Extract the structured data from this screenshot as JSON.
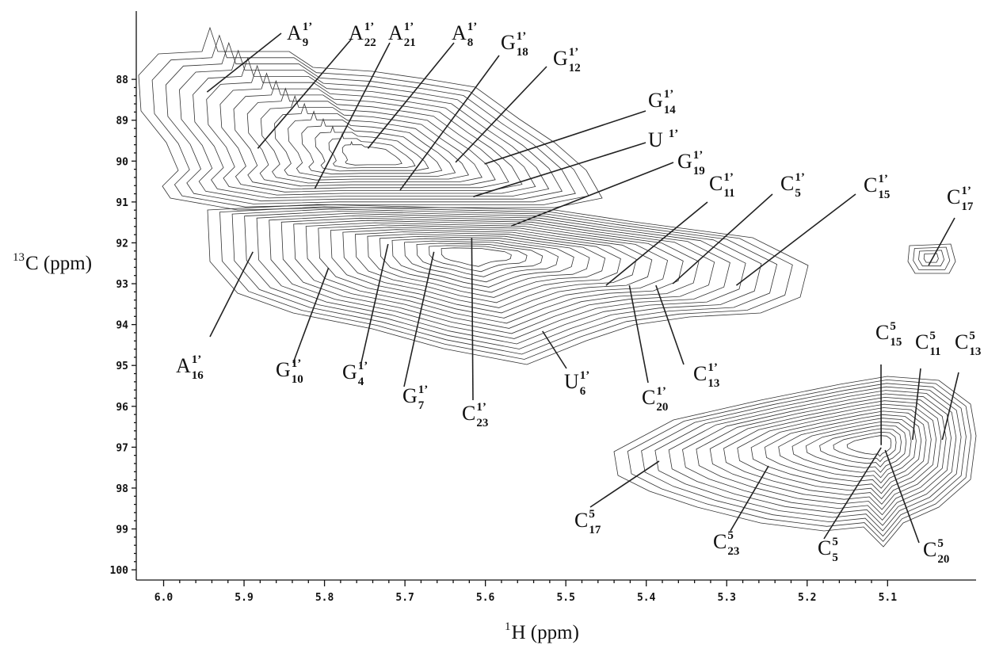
{
  "chart_data": {
    "type": "contour",
    "x_label": {
      "sup": "1",
      "text": "H (ppm)"
    },
    "y_label": {
      "sup": "13",
      "text": "C (ppm)"
    },
    "xlim": [
      6.034,
      4.99
    ],
    "ylim": [
      86.33,
      100.25
    ],
    "xticks": [
      {
        "value": 6.0,
        "label": "6.0"
      },
      5.9,
      5.8,
      5.7,
      5.6,
      5.5,
      5.4,
      5.3,
      5.2,
      5.1
    ],
    "yticks": [
      88,
      89,
      90,
      91,
      92,
      93,
      94,
      95,
      96,
      97,
      98,
      99,
      100
    ],
    "color": "#222222",
    "peaks": [
      {
        "label": {
          "base": "A",
          "sup": "1’",
          "sub": "9"
        },
        "x": 5.946,
        "y": 88.31
      },
      {
        "label": {
          "base": "A",
          "sup": "1’",
          "sub": "22"
        },
        "x": 5.883,
        "y": 89.69
      },
      {
        "label": {
          "base": "A",
          "sup": "1’",
          "sub": "21"
        },
        "x": 5.812,
        "y": 90.67
      },
      {
        "label": {
          "base": "A",
          "sup": "1’",
          "sub": "8"
        },
        "x": 5.746,
        "y": 89.69
      },
      {
        "label": {
          "base": "G",
          "sup": "1’",
          "sub": "18"
        },
        "x": 5.706,
        "y": 90.71
      },
      {
        "label": {
          "base": "G",
          "sup": "1’",
          "sub": "12"
        },
        "x": 5.637,
        "y": 90.03
      },
      {
        "label": {
          "base": "G",
          "sup": "1’",
          "sub": "14"
        },
        "x": 5.601,
        "y": 90.07
      },
      {
        "label": {
          "base": "U",
          "sup": "1’"
        },
        "x": 5.615,
        "y": 90.87
      },
      {
        "label": {
          "base": "G",
          "sup": "1’",
          "sub": "19"
        },
        "x": 5.568,
        "y": 91.59
      },
      {
        "label": {
          "base": "C",
          "sup": "1’",
          "sub": "11"
        },
        "x": 5.45,
        "y": 93.04
      },
      {
        "label": {
          "base": "C",
          "sup": "1’",
          "sub": "5"
        },
        "x": 5.367,
        "y": 93.0
      },
      {
        "label": {
          "base": "C",
          "sup": "1’",
          "sub": "15"
        },
        "x": 5.288,
        "y": 93.04
      },
      {
        "label": {
          "base": "C",
          "sup": "1’",
          "sub": "17"
        },
        "x": 5.049,
        "y": 92.55
      },
      {
        "label": {
          "base": "A",
          "sup": "1’",
          "sub": "16"
        },
        "x": 5.889,
        "y": 92.22
      },
      {
        "label": {
          "base": "G",
          "sup": "1’",
          "sub": "10"
        },
        "x": 5.795,
        "y": 92.61
      },
      {
        "label": {
          "base": "G",
          "sup": "1’",
          "sub": "4"
        },
        "x": 5.721,
        "y": 92.03
      },
      {
        "label": {
          "base": "G",
          "sup": "1’",
          "sub": "7"
        },
        "x": 5.664,
        "y": 92.22
      },
      {
        "label": {
          "base": "C",
          "sup": "1’",
          "sub": "23"
        },
        "x": 5.617,
        "y": 91.88
      },
      {
        "label": {
          "base": "U",
          "sup": "1’",
          "sub": "6"
        },
        "x": 5.529,
        "y": 94.16
      },
      {
        "label": {
          "base": "C",
          "sup": "1’",
          "sub": "20"
        },
        "x": 5.421,
        "y": 93.04
      },
      {
        "label": {
          "base": "C",
          "sup": "1’",
          "sub": "13"
        },
        "x": 5.388,
        "y": 93.04
      },
      {
        "label": {
          "base": "C",
          "sup": "5",
          "sub": "17"
        },
        "x": 5.384,
        "y": 97.34
      },
      {
        "label": {
          "base": "C",
          "sup": "5",
          "sub": "23"
        },
        "x": 5.248,
        "y": 97.46
      },
      {
        "label": {
          "base": "C",
          "sup": "5",
          "sub": "15"
        },
        "x": 5.108,
        "y": 96.95
      },
      {
        "label": {
          "base": "C",
          "sup": "5",
          "sub": "11"
        },
        "x": 5.069,
        "y": 96.82
      },
      {
        "label": {
          "base": "C",
          "sup": "5",
          "sub": "13"
        },
        "x": 5.032,
        "y": 96.82
      },
      {
        "label": {
          "base": "C",
          "sup": "5",
          "sub": "5"
        },
        "x": 5.108,
        "y": 97.01
      },
      {
        "label": {
          "base": "C",
          "sup": "5",
          "sub": "20"
        },
        "x": 5.103,
        "y": 97.07
      }
    ]
  }
}
